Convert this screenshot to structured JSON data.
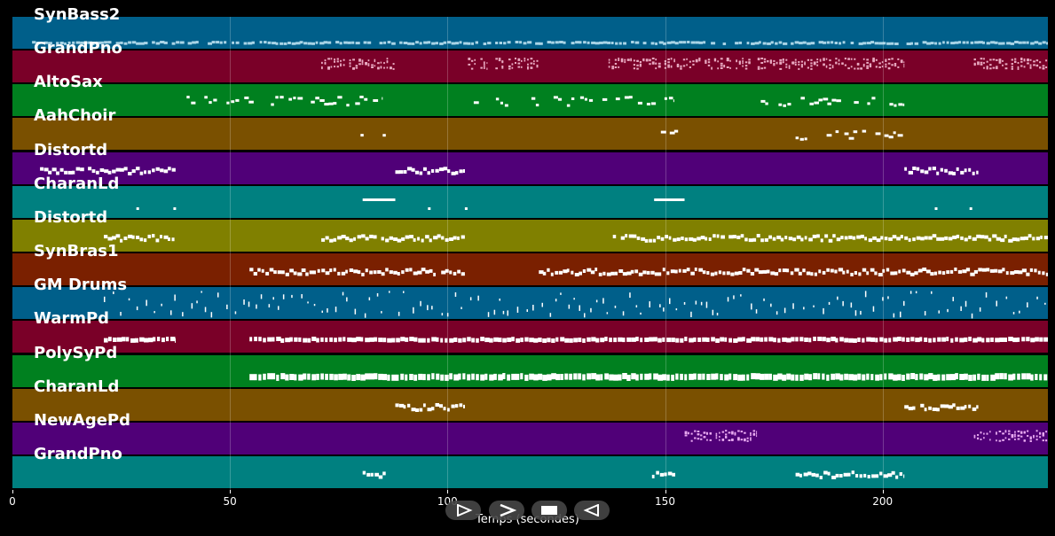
{
  "chart_data": {
    "type": "piano-roll",
    "title": "",
    "xlabel": "Temps (secondes)",
    "xlim": [
      0,
      238
    ],
    "x_ticks": [
      0,
      50,
      100,
      150,
      200
    ],
    "tracks": [
      {
        "name": "SynBass2",
        "color": "#005f8a",
        "note_color": "#a9d4e6",
        "segments": [
          [
            4.5,
            238
          ]
        ],
        "style": "dense-small"
      },
      {
        "name": "GrandPno",
        "color": "#7a0028",
        "note_color": "#e8a9c0",
        "segments": [
          [
            71,
            88
          ],
          [
            104,
            109
          ],
          [
            111,
            113
          ],
          [
            114,
            121
          ],
          [
            137,
            205
          ],
          [
            221,
            238
          ]
        ],
        "style": "chords"
      },
      {
        "name": "AltoSax",
        "color": "#00801f",
        "note_color": "#ffffff",
        "segments": [
          [
            38,
            85
          ],
          [
            105,
            152
          ],
          [
            172,
            205
          ]
        ],
        "style": "melody-sparse"
      },
      {
        "name": "AahChoir",
        "color": "#7a5000",
        "note_color": "#ffffff",
        "segments": [
          [
            80,
            86
          ],
          [
            147,
            153
          ],
          [
            180,
            205
          ]
        ],
        "style": "melody-sparse"
      },
      {
        "name": "Distortd",
        "color": "#500078",
        "note_color": "#ffffff",
        "segments": [
          [
            4.5,
            37.5
          ],
          [
            88,
            104
          ],
          [
            205,
            222
          ]
        ],
        "style": "melody-thick"
      },
      {
        "name": "CharanLd",
        "color": "#008080",
        "note_color": "#ffffff",
        "segments": [
          [
            80.5,
            88
          ],
          [
            147.5,
            154.5
          ],
          [
            28.5,
            29.2
          ],
          [
            37,
            37.7
          ],
          [
            95.5,
            96.2
          ],
          [
            104,
            104.6
          ],
          [
            212,
            212.6
          ],
          [
            220,
            220.6
          ]
        ],
        "style": "long"
      },
      {
        "name": "Distortd",
        "color": "#808000",
        "note_color": "#ffffff",
        "segments": [
          [
            21,
            37.5
          ],
          [
            71,
            104
          ],
          [
            138,
            238
          ]
        ],
        "style": "melody-thick"
      },
      {
        "name": "SynBras1",
        "color": "#7a2000",
        "note_color": "#ffffff",
        "segments": [
          [
            54.5,
            104
          ],
          [
            121,
            238
          ]
        ],
        "style": "melody-thick"
      },
      {
        "name": "GM Drums",
        "color": "#005f8a",
        "note_color": "#ffffff",
        "segments": [
          [
            21,
            238
          ]
        ],
        "style": "drums"
      },
      {
        "name": "WarmPd",
        "color": "#7a0028",
        "note_color": "#ffffff",
        "segments": [
          [
            21,
            37.5
          ],
          [
            54.5,
            238
          ]
        ],
        "style": "pad"
      },
      {
        "name": "PolySyPd",
        "color": "#00801f",
        "note_color": "#ffffff",
        "segments": [
          [
            54.5,
            238
          ]
        ],
        "style": "pad-thick"
      },
      {
        "name": "CharanLd",
        "color": "#7a5000",
        "note_color": "#ffffff",
        "segments": [
          [
            88,
            104
          ],
          [
            205,
            222
          ]
        ],
        "style": "melody-thick"
      },
      {
        "name": "NewAgePd",
        "color": "#500078",
        "note_color": "#e8a9f0",
        "segments": [
          [
            154.5,
            171
          ],
          [
            221,
            238
          ]
        ],
        "style": "chords"
      },
      {
        "name": "GrandPno",
        "color": "#008080",
        "note_color": "#ffffff",
        "segments": [
          [
            80.5,
            86
          ],
          [
            147,
            152.5
          ],
          [
            180,
            205
          ]
        ],
        "style": "melody-thick"
      }
    ]
  },
  "controls": {
    "play_label": "play",
    "next_label": "next",
    "stop_label": "stop",
    "previous_label": "previous"
  }
}
